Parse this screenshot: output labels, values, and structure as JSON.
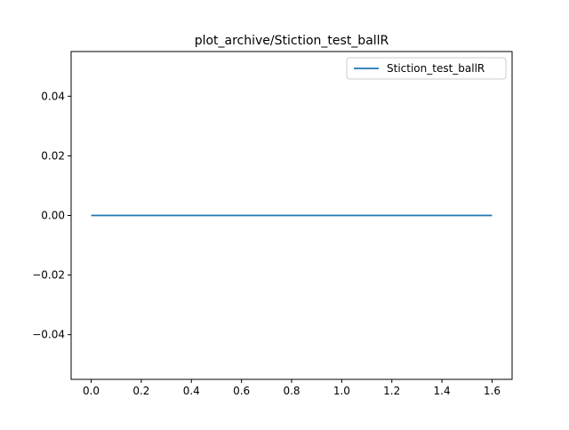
{
  "chart_data": {
    "type": "line",
    "title": "plot_archive/Stiction_test_ballR",
    "xlabel": "",
    "ylabel": "",
    "xlim": [
      -0.08,
      1.68
    ],
    "ylim": [
      -0.055,
      0.055
    ],
    "x_ticks": [
      0.0,
      0.2,
      0.4,
      0.6,
      0.8,
      1.0,
      1.2,
      1.4,
      1.6
    ],
    "x_tick_labels": [
      "0.0",
      "0.2",
      "0.4",
      "0.6",
      "0.8",
      "1.0",
      "1.2",
      "1.4",
      "1.6"
    ],
    "y_ticks": [
      -0.04,
      -0.02,
      0.0,
      0.02,
      0.04
    ],
    "y_tick_labels": [
      "−0.04",
      "−0.02",
      "0.00",
      "0.02",
      "0.04"
    ],
    "grid": false,
    "legend_position": "upper right",
    "series": [
      {
        "name": "Stiction_test_ballR",
        "color": "#1f77b4",
        "x": [
          0.0,
          1.6
        ],
        "y": [
          0.0,
          0.0
        ]
      }
    ]
  }
}
